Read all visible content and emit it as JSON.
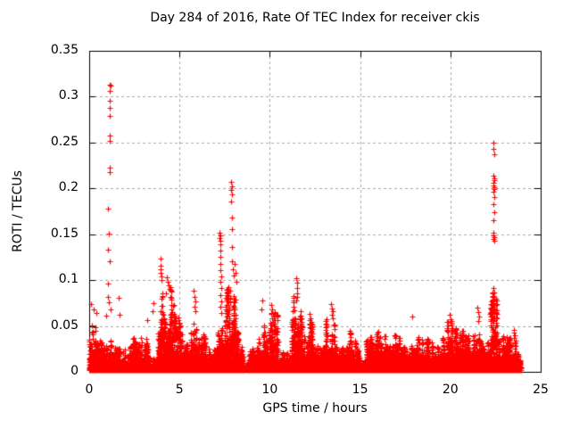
{
  "page": {
    "background": "#ffffff"
  },
  "chart_data": {
    "type": "scatter",
    "title": "Day 284 of 2016, Rate Of TEC Index for receiver ckis",
    "xlabel": "GPS time / hours",
    "ylabel": "ROTI / TECUs",
    "xlim": [
      0,
      25
    ],
    "ylim": [
      0,
      0.35
    ],
    "xticks": {
      "values": [
        0,
        5,
        10,
        15,
        20,
        25
      ],
      "labels": [
        "0",
        "5",
        "10",
        "15",
        "20",
        "25"
      ]
    },
    "yticks": {
      "values": [
        0,
        0.05,
        0.1,
        0.15,
        0.2,
        0.25,
        0.3,
        0.35
      ],
      "labels": [
        "0",
        "0.05",
        "0.1",
        "0.15",
        "0.2",
        "0.25",
        "0.3",
        "0.35"
      ]
    },
    "grid": {
      "shown": true,
      "style": "dashed"
    },
    "legend": {
      "shown": false
    },
    "marker": {
      "symbol": "+",
      "size": 7,
      "color": "#ff0000"
    },
    "colors": {
      "points": "#ff0000",
      "axis": "#000000",
      "grid": "#a8a8a8",
      "text": "#000000",
      "background": "#ffffff"
    },
    "data_span_hours": [
      0,
      24
    ],
    "baseline_bins": {
      "format": [
        "t_start_h",
        "t_end_h",
        "max_roti",
        "points_per_hour"
      ],
      "bins": [
        [
          0.0,
          0.6,
          0.058,
          650
        ],
        [
          0.6,
          1.0,
          0.042,
          650
        ],
        [
          1.0,
          1.35,
          0.048,
          650
        ],
        [
          1.35,
          1.7,
          0.032,
          500
        ],
        [
          1.7,
          1.9,
          0.02,
          250
        ],
        [
          1.9,
          2.25,
          0.026,
          350
        ],
        [
          2.25,
          3.35,
          0.042,
          620
        ],
        [
          3.35,
          3.8,
          0.022,
          260
        ],
        [
          3.8,
          4.65,
          0.105,
          720
        ],
        [
          4.65,
          5.15,
          0.078,
          520
        ],
        [
          5.15,
          5.6,
          0.036,
          500
        ],
        [
          5.6,
          6.1,
          0.072,
          520
        ],
        [
          6.1,
          6.9,
          0.042,
          600
        ],
        [
          6.9,
          7.5,
          0.065,
          650
        ],
        [
          7.5,
          8.2,
          0.115,
          750
        ],
        [
          8.2,
          8.55,
          0.045,
          450
        ],
        [
          8.55,
          8.85,
          0.014,
          180
        ],
        [
          8.85,
          9.35,
          0.03,
          450
        ],
        [
          9.35,
          9.95,
          0.058,
          600
        ],
        [
          9.95,
          10.45,
          0.072,
          600
        ],
        [
          10.45,
          11.2,
          0.032,
          500
        ],
        [
          11.2,
          11.8,
          0.088,
          650
        ],
        [
          11.8,
          12.1,
          0.04,
          500
        ],
        [
          12.1,
          12.6,
          0.064,
          520
        ],
        [
          12.6,
          13.0,
          0.03,
          380
        ],
        [
          13.0,
          13.7,
          0.07,
          600
        ],
        [
          13.7,
          14.5,
          0.046,
          650
        ],
        [
          14.5,
          15.0,
          0.04,
          520
        ],
        [
          15.0,
          15.25,
          0.016,
          200
        ],
        [
          15.25,
          16.3,
          0.046,
          650
        ],
        [
          16.3,
          17.0,
          0.05,
          650
        ],
        [
          17.0,
          17.5,
          0.058,
          650
        ],
        [
          17.5,
          18.5,
          0.05,
          700
        ],
        [
          18.5,
          19.5,
          0.046,
          700
        ],
        [
          19.5,
          20.2,
          0.062,
          650
        ],
        [
          20.2,
          21.4,
          0.05,
          700
        ],
        [
          21.4,
          21.8,
          0.07,
          520
        ],
        [
          21.8,
          22.2,
          0.046,
          520
        ],
        [
          22.2,
          22.6,
          0.092,
          650
        ],
        [
          22.6,
          23.4,
          0.052,
          650
        ],
        [
          23.4,
          23.9,
          0.042,
          460
        ]
      ]
    },
    "spike_points": {
      "format": [
        "gps_hour",
        "roti_tecu"
      ],
      "points": [
        [
          1.13,
          0.313
        ],
        [
          1.17,
          0.312
        ],
        [
          1.15,
          0.306
        ],
        [
          1.14,
          0.296
        ],
        [
          1.16,
          0.288
        ],
        [
          1.15,
          0.279
        ],
        [
          1.13,
          0.258
        ],
        [
          1.16,
          0.252
        ],
        [
          1.15,
          0.223
        ],
        [
          1.14,
          0.218
        ],
        [
          1.05,
          0.178
        ],
        [
          1.07,
          0.151
        ],
        [
          1.06,
          0.133
        ],
        [
          1.12,
          0.121
        ],
        [
          1.04,
          0.096
        ],
        [
          1.03,
          0.082
        ],
        [
          1.1,
          0.076
        ],
        [
          1.18,
          0.068
        ],
        [
          1.65,
          0.081
        ],
        [
          1.68,
          0.062
        ],
        [
          0.12,
          0.074
        ],
        [
          0.25,
          0.068
        ],
        [
          0.4,
          0.064
        ],
        [
          0.95,
          0.061
        ],
        [
          3.2,
          0.056
        ],
        [
          3.5,
          0.066
        ],
        [
          3.55,
          0.075
        ],
        [
          3.93,
          0.123
        ],
        [
          3.96,
          0.116
        ],
        [
          3.94,
          0.112
        ],
        [
          3.97,
          0.108
        ],
        [
          3.99,
          0.104
        ],
        [
          4.02,
          0.1
        ],
        [
          4.3,
          0.103
        ],
        [
          4.35,
          0.098
        ],
        [
          4.4,
          0.094
        ],
        [
          4.45,
          0.09
        ],
        [
          4.25,
          0.086
        ],
        [
          4.5,
          0.082
        ],
        [
          5.8,
          0.088
        ],
        [
          5.84,
          0.082
        ],
        [
          5.88,
          0.077
        ],
        [
          5.82,
          0.071
        ],
        [
          5.86,
          0.066
        ],
        [
          7.22,
          0.152
        ],
        [
          7.25,
          0.149
        ],
        [
          7.23,
          0.146
        ],
        [
          7.26,
          0.143
        ],
        [
          7.24,
          0.139
        ],
        [
          7.27,
          0.132
        ],
        [
          7.25,
          0.125
        ],
        [
          7.28,
          0.118
        ],
        [
          7.24,
          0.111
        ],
        [
          7.29,
          0.104
        ],
        [
          7.26,
          0.098
        ],
        [
          7.3,
          0.091
        ],
        [
          7.27,
          0.084
        ],
        [
          7.31,
          0.077
        ],
        [
          7.28,
          0.071
        ],
        [
          7.32,
          0.064
        ],
        [
          7.86,
          0.207
        ],
        [
          7.89,
          0.202
        ],
        [
          7.87,
          0.198
        ],
        [
          7.9,
          0.193
        ],
        [
          7.88,
          0.186
        ],
        [
          7.91,
          0.168
        ],
        [
          7.89,
          0.156
        ],
        [
          7.92,
          0.136
        ],
        [
          7.9,
          0.121
        ],
        [
          7.95,
          0.112
        ],
        [
          8.0,
          0.105
        ],
        [
          8.05,
          0.118
        ],
        [
          8.1,
          0.108
        ],
        [
          8.15,
          0.098
        ],
        [
          9.6,
          0.078
        ],
        [
          9.55,
          0.068
        ],
        [
          10.1,
          0.073
        ],
        [
          10.14,
          0.068
        ],
        [
          10.18,
          0.063
        ],
        [
          10.12,
          0.058
        ],
        [
          10.16,
          0.054
        ],
        [
          11.48,
          0.102
        ],
        [
          11.51,
          0.097
        ],
        [
          11.49,
          0.091
        ],
        [
          11.53,
          0.086
        ],
        [
          11.5,
          0.082
        ],
        [
          11.46,
          0.078
        ],
        [
          11.7,
          0.066
        ],
        [
          11.73,
          0.061
        ],
        [
          12.22,
          0.063
        ],
        [
          12.26,
          0.058
        ],
        [
          12.3,
          0.054
        ],
        [
          13.4,
          0.074
        ],
        [
          13.45,
          0.069
        ],
        [
          13.5,
          0.066
        ],
        [
          13.42,
          0.062
        ],
        [
          13.48,
          0.058
        ],
        [
          17.88,
          0.06
        ],
        [
          19.95,
          0.062
        ],
        [
          20.0,
          0.057
        ],
        [
          20.05,
          0.053
        ],
        [
          21.5,
          0.07
        ],
        [
          21.55,
          0.065
        ],
        [
          21.6,
          0.06
        ],
        [
          21.52,
          0.055
        ],
        [
          22.38,
          0.25
        ],
        [
          22.4,
          0.243
        ],
        [
          22.42,
          0.237
        ],
        [
          22.39,
          0.214
        ],
        [
          22.41,
          0.211
        ],
        [
          22.43,
          0.209
        ],
        [
          22.4,
          0.206
        ],
        [
          22.38,
          0.203
        ],
        [
          22.42,
          0.201
        ],
        [
          22.44,
          0.199
        ],
        [
          22.4,
          0.196
        ],
        [
          22.41,
          0.191
        ],
        [
          22.39,
          0.183
        ],
        [
          22.42,
          0.174
        ],
        [
          22.4,
          0.165
        ],
        [
          22.37,
          0.152
        ],
        [
          22.4,
          0.149
        ],
        [
          22.43,
          0.147
        ],
        [
          22.39,
          0.145
        ],
        [
          22.41,
          0.143
        ],
        [
          22.4,
          0.091
        ],
        [
          22.42,
          0.087
        ],
        [
          22.38,
          0.083
        ],
        [
          22.43,
          0.079
        ],
        [
          22.4,
          0.075
        ],
        [
          22.44,
          0.071
        ],
        [
          22.39,
          0.067
        ],
        [
          22.41,
          0.063
        ],
        [
          22.45,
          0.059
        ],
        [
          22.4,
          0.055
        ],
        [
          23.5,
          0.046
        ],
        [
          23.54,
          0.043
        ],
        [
          23.58,
          0.04
        ],
        [
          23.52,
          0.037
        ],
        [
          23.6,
          0.034
        ],
        [
          23.56,
          0.031
        ],
        [
          23.62,
          0.028
        ],
        [
          23.59,
          0.025
        ],
        [
          23.64,
          0.022
        ]
      ]
    }
  }
}
